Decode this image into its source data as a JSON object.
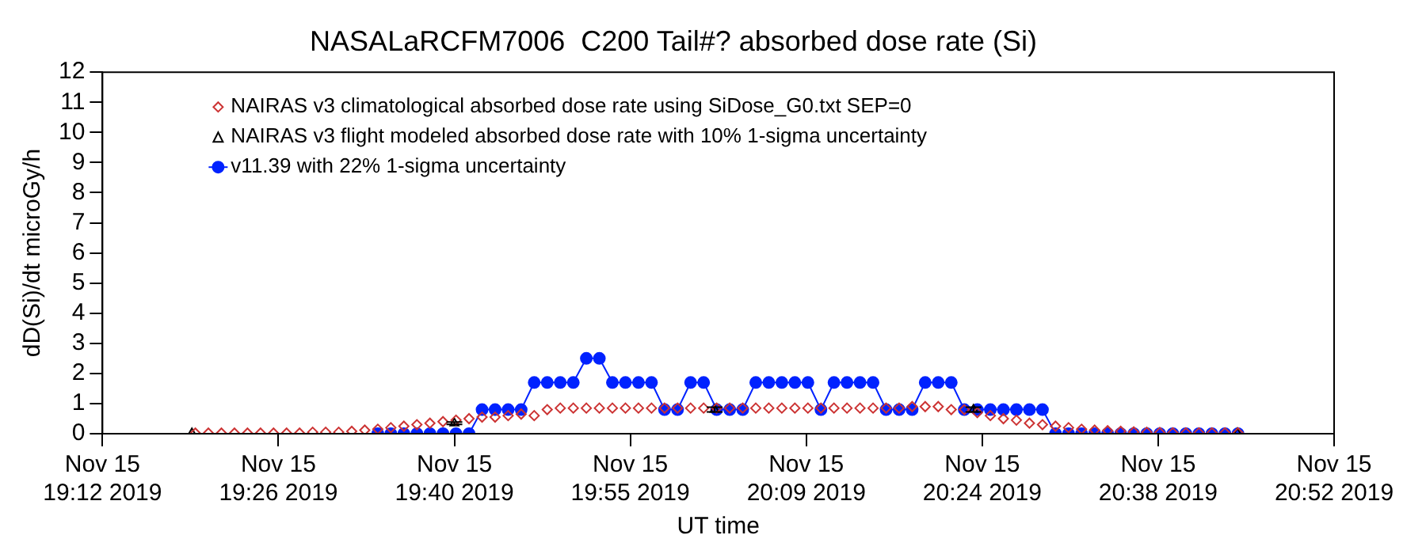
{
  "chart_data": {
    "type": "scatter",
    "title": "NASALaRCFM7006  C200 Tail#? absorbed dose rate (Si)",
    "xlabel": "UT time",
    "ylabel": "dD(Si)/dt microGy/h",
    "xlim": [
      "2019-11-15T19:12:00",
      "2019-11-15T20:52:48"
    ],
    "ylim": [
      0,
      12
    ],
    "xticks": [
      {
        "value": "2019-11-15T19:12:00",
        "label": "Nov 15\n19:12 2019"
      },
      {
        "value": "2019-11-15T19:26:24",
        "label": "Nov 15\n19:26 2019"
      },
      {
        "value": "2019-11-15T19:40:48",
        "label": "Nov 15\n19:40 2019"
      },
      {
        "value": "2019-11-15T19:55:12",
        "label": "Nov 15\n19:55 2019"
      },
      {
        "value": "2019-11-15T20:09:36",
        "label": "Nov 15\n20:09 2019"
      },
      {
        "value": "2019-11-15T20:24:00",
        "label": "Nov 15\n20:24 2019"
      },
      {
        "value": "2019-11-15T20:38:24",
        "label": "Nov 15\n20:38 2019"
      },
      {
        "value": "2019-11-15T20:52:48",
        "label": "Nov 15\n20:52 2019"
      }
    ],
    "yticks": [
      0,
      1,
      2,
      3,
      4,
      5,
      6,
      7,
      8,
      9,
      10,
      11,
      12
    ],
    "grid": false,
    "legend": "top left",
    "x": [
      "2019-11-15T19:19:36",
      "2019-11-15T19:20:40",
      "2019-11-15T19:21:44",
      "2019-11-15T19:22:48",
      "2019-11-15T19:23:52",
      "2019-11-15T19:24:56",
      "2019-11-15T19:26:00",
      "2019-11-15T19:27:04",
      "2019-11-15T19:28:08",
      "2019-11-15T19:29:12",
      "2019-11-15T19:30:16",
      "2019-11-15T19:31:20",
      "2019-11-15T19:32:24",
      "2019-11-15T19:33:28",
      "2019-11-15T19:34:32",
      "2019-11-15T19:35:36",
      "2019-11-15T19:36:40",
      "2019-11-15T19:37:44",
      "2019-11-15T19:38:48",
      "2019-11-15T19:39:52",
      "2019-11-15T19:40:56",
      "2019-11-15T19:42:00",
      "2019-11-15T19:43:04",
      "2019-11-15T19:44:08",
      "2019-11-15T19:45:12",
      "2019-11-15T19:46:16",
      "2019-11-15T19:47:20",
      "2019-11-15T19:48:24",
      "2019-11-15T19:49:28",
      "2019-11-15T19:50:32",
      "2019-11-15T19:51:36",
      "2019-11-15T19:52:40",
      "2019-11-15T19:53:44",
      "2019-11-15T19:54:48",
      "2019-11-15T19:55:52",
      "2019-11-15T19:56:56",
      "2019-11-15T19:58:00",
      "2019-11-15T19:59:04",
      "2019-11-15T20:00:08",
      "2019-11-15T20:01:12",
      "2019-11-15T20:02:16",
      "2019-11-15T20:03:20",
      "2019-11-15T20:04:24",
      "2019-11-15T20:05:28",
      "2019-11-15T20:06:32",
      "2019-11-15T20:07:36",
      "2019-11-15T20:08:40",
      "2019-11-15T20:09:44",
      "2019-11-15T20:10:48",
      "2019-11-15T20:11:52",
      "2019-11-15T20:12:56",
      "2019-11-15T20:14:00",
      "2019-11-15T20:15:04",
      "2019-11-15T20:16:08",
      "2019-11-15T20:17:12",
      "2019-11-15T20:18:16",
      "2019-11-15T20:19:20",
      "2019-11-15T20:20:24",
      "2019-11-15T20:21:28",
      "2019-11-15T20:22:32",
      "2019-11-15T20:23:36",
      "2019-11-15T20:24:40",
      "2019-11-15T20:25:44",
      "2019-11-15T20:26:48",
      "2019-11-15T20:27:52",
      "2019-11-15T20:28:56",
      "2019-11-15T20:30:00",
      "2019-11-15T20:31:04",
      "2019-11-15T20:32:08",
      "2019-11-15T20:33:12",
      "2019-11-15T20:34:16",
      "2019-11-15T20:35:20",
      "2019-11-15T20:36:24",
      "2019-11-15T20:37:28",
      "2019-11-15T20:38:32",
      "2019-11-15T20:39:36",
      "2019-11-15T20:40:40",
      "2019-11-15T20:41:44",
      "2019-11-15T20:42:48",
      "2019-11-15T20:43:52",
      "2019-11-15T20:44:56"
    ],
    "series": [
      {
        "name": "NAIRAS v3 climatological absorbed dose rate using SiDose_G0.txt SEP=0",
        "color": "#cc3333",
        "marker": "diamond",
        "values": [
          0.02,
          0.02,
          0.02,
          0.02,
          0.02,
          0.02,
          0.02,
          0.02,
          0.02,
          0.05,
          0.05,
          0.05,
          0.08,
          0.12,
          0.15,
          0.2,
          0.25,
          0.3,
          0.35,
          0.4,
          0.45,
          0.5,
          0.55,
          0.55,
          0.6,
          0.65,
          0.6,
          0.8,
          0.85,
          0.85,
          0.85,
          0.85,
          0.85,
          0.85,
          0.85,
          0.85,
          0.85,
          0.85,
          0.85,
          0.85,
          0.85,
          0.85,
          0.85,
          0.85,
          0.85,
          0.85,
          0.85,
          0.85,
          0.85,
          0.85,
          0.85,
          0.85,
          0.85,
          0.85,
          0.85,
          0.9,
          0.9,
          0.9,
          0.8,
          0.8,
          0.7,
          0.6,
          0.5,
          0.45,
          0.35,
          0.3,
          0.25,
          0.2,
          0.15,
          0.12,
          0.1,
          0.08,
          0.06,
          0.05,
          0.04,
          0.03,
          0.03,
          0.03,
          0.03,
          0.03,
          0.03
        ]
      },
      {
        "name": "NAIRAS v3 flight modeled absorbed dose rate with 10% 1-sigma uncertainty",
        "color": "#000000",
        "marker": "triangle",
        "x": [
          "2019-11-15T19:19:19",
          "2019-11-15T19:40:48",
          "2019-11-15T20:02:06",
          "2019-11-15T20:23:17",
          "2019-11-15T20:44:53"
        ],
        "values": [
          0.02,
          0.35,
          0.8,
          0.8,
          0.02
        ],
        "errors": [
          null,
          0.04,
          0.08,
          0.08,
          null
        ]
      },
      {
        "name": "v11.39 with 22% 1-sigma uncertainty",
        "type": "line",
        "color": "#0022ff",
        "marker": "circle",
        "line_style": "solid",
        "x": [
          "2019-11-15T19:34:32",
          "2019-11-15T19:35:36",
          "2019-11-15T19:36:40",
          "2019-11-15T19:37:44",
          "2019-11-15T19:38:48",
          "2019-11-15T19:39:52",
          "2019-11-15T19:40:56",
          "2019-11-15T19:42:00",
          "2019-11-15T19:43:04",
          "2019-11-15T19:44:08",
          "2019-11-15T19:45:12",
          "2019-11-15T19:46:16",
          "2019-11-15T19:47:20",
          "2019-11-15T19:48:24",
          "2019-11-15T19:49:28",
          "2019-11-15T19:50:32",
          "2019-11-15T19:51:36",
          "2019-11-15T19:52:40",
          "2019-11-15T19:53:44",
          "2019-11-15T19:54:48",
          "2019-11-15T19:55:52",
          "2019-11-15T19:56:56",
          "2019-11-15T19:58:00",
          "2019-11-15T19:59:04",
          "2019-11-15T20:00:08",
          "2019-11-15T20:01:12",
          "2019-11-15T20:02:16",
          "2019-11-15T20:03:20",
          "2019-11-15T20:04:24",
          "2019-11-15T20:05:28",
          "2019-11-15T20:06:32",
          "2019-11-15T20:07:36",
          "2019-11-15T20:08:40",
          "2019-11-15T20:09:44",
          "2019-11-15T20:10:48",
          "2019-11-15T20:11:52",
          "2019-11-15T20:12:56",
          "2019-11-15T20:14:00",
          "2019-11-15T20:15:04",
          "2019-11-15T20:16:08",
          "2019-11-15T20:17:12",
          "2019-11-15T20:18:16",
          "2019-11-15T20:19:20",
          "2019-11-15T20:20:24",
          "2019-11-15T20:21:28",
          "2019-11-15T20:22:32",
          "2019-11-15T20:23:36",
          "2019-11-15T20:24:40",
          "2019-11-15T20:25:44",
          "2019-11-15T20:26:48",
          "2019-11-15T20:27:52",
          "2019-11-15T20:28:56",
          "2019-11-15T20:30:00",
          "2019-11-15T20:31:04",
          "2019-11-15T20:32:08",
          "2019-11-15T20:33:12",
          "2019-11-15T20:34:16",
          "2019-11-15T20:35:20",
          "2019-11-15T20:36:24",
          "2019-11-15T20:37:28",
          "2019-11-15T20:38:32",
          "2019-11-15T20:39:36",
          "2019-11-15T20:40:40",
          "2019-11-15T20:41:44",
          "2019-11-15T20:42:48",
          "2019-11-15T20:43:52",
          "2019-11-15T20:44:56"
        ],
        "values": [
          0,
          0,
          0,
          0,
          0,
          0,
          0,
          0,
          0.8,
          0.8,
          0.8,
          0.8,
          1.7,
          1.7,
          1.7,
          1.7,
          2.5,
          2.5,
          1.7,
          1.7,
          1.7,
          1.7,
          0.8,
          0.8,
          1.7,
          1.7,
          0.8,
          0.8,
          0.8,
          1.7,
          1.7,
          1.7,
          1.7,
          1.7,
          0.8,
          1.7,
          1.7,
          1.7,
          1.7,
          0.8,
          0.8,
          0.8,
          1.7,
          1.7,
          1.7,
          0.8,
          0.8,
          0.8,
          0.8,
          0.8,
          0.8,
          0.8,
          0,
          0,
          0,
          0,
          0,
          0,
          0,
          0,
          0,
          0,
          0,
          0,
          0,
          0,
          0
        ]
      }
    ]
  }
}
